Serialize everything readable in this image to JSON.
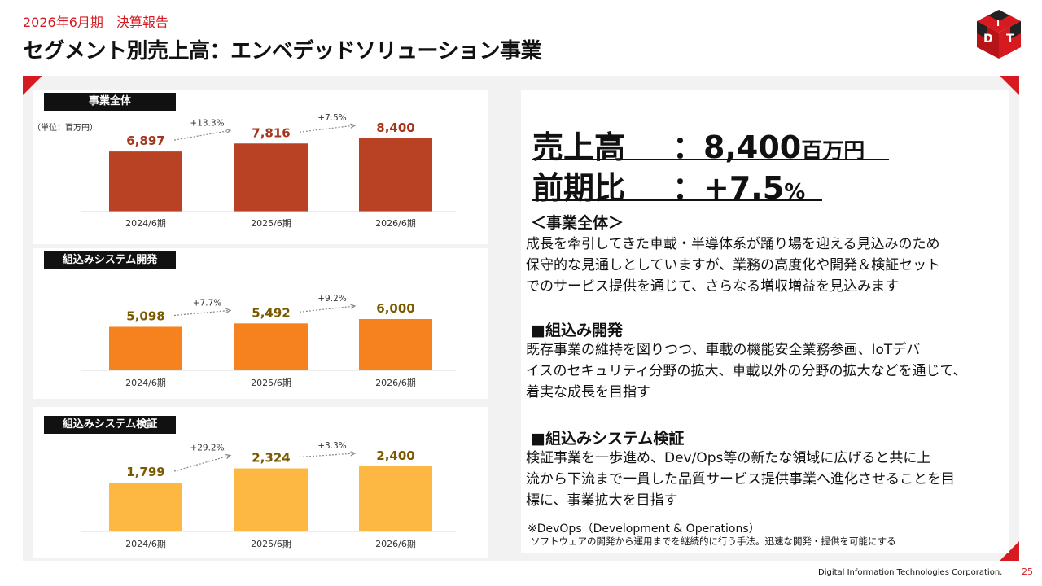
{
  "header": {
    "subtitle": "2026年6月期　決算報告",
    "title": "セグメント別売上高：エンベデッドソリューション事業"
  },
  "logo": {
    "letters": [
      "D",
      "I",
      "T"
    ],
    "colors": {
      "primary": "#d71920",
      "dark": "#222222"
    }
  },
  "charts": [
    {
      "label": "事業全体",
      "unit": "（単位：百万円）",
      "color": "#b84223",
      "values_labels": [
        "6,897",
        "7,816",
        "8,400"
      ],
      "growth": [
        "+13.3%",
        "+7.5%"
      ],
      "categories": [
        "2024/6期",
        "2025/6期",
        "2026/6期"
      ]
    },
    {
      "label": "組込みシステム開発",
      "color": "#f5821f",
      "values_labels": [
        "5,098",
        "5,492",
        "6,000"
      ],
      "growth": [
        "+7.7%",
        "+9.2%"
      ],
      "categories": [
        "2024/6期",
        "2025/6期",
        "2026/6期"
      ]
    },
    {
      "label": "組込みシステム検証",
      "color": "#fdb844",
      "values_labels": [
        "1,799",
        "2,324",
        "2,400"
      ],
      "growth": [
        "+29.2%",
        "+3.3%"
      ],
      "categories": [
        "2024/6期",
        "2025/6期",
        "2026/6期"
      ]
    }
  ],
  "chart_data": [
    {
      "type": "bar",
      "title": "事業全体",
      "categories": [
        "2024/6期",
        "2025/6期",
        "2026/6期"
      ],
      "values": [
        6897,
        7816,
        8400
      ]
    },
    {
      "type": "bar",
      "title": "組込みシステム開発",
      "categories": [
        "2024/6期",
        "2025/6期",
        "2026/6期"
      ],
      "values": [
        5098,
        5492,
        6000
      ]
    },
    {
      "type": "bar",
      "title": "組込みシステム検証",
      "categories": [
        "2024/6期",
        "2025/6期",
        "2026/6期"
      ],
      "values": [
        1799,
        2324,
        2400
      ]
    }
  ],
  "kpi": {
    "sales_label": "売上高",
    "sales_sep": "：",
    "sales_value": "8,400",
    "sales_unit": "百万円",
    "yoy_label": "前期比",
    "yoy_sep": "：",
    "yoy_value": "+7.5",
    "yoy_unit": "%"
  },
  "sections": [
    {
      "heading": "＜事業全体＞",
      "lines": [
        "成長を牽引してきた車載・半導体系が踊り場を迎える見込みのため",
        "保守的な見通しとしていますが、業務の高度化や開発＆検証セット",
        "でのサービス提供を通じて、さらなる増収増益を見込みます"
      ]
    },
    {
      "heading": "■組込み開発",
      "lines": [
        "既存事業の維持を図りつつ、車載の機能安全業務参画、IoTデバ",
        "イスのセキュリティ分野の拡大、車載以外の分野の拡大などを通じて、",
        "着実な成長を目指す"
      ]
    },
    {
      "heading": "■組込みシステム検証",
      "lines": [
        "検証事業を一歩進め、Dev/Ops等の新たな領域に広げると共に上",
        "流から下流まで一貫した品質サービス提供事業へ進化させることを目",
        "標に、事業拡大を目指す"
      ]
    }
  ],
  "notes": {
    "line1": "※DevOps（Development & Operations）",
    "line2": "ソフトウェアの開発から運用までを継続的に行う手法。迅速な開発・提供を可能にする"
  },
  "footer": {
    "company": "Digital Information Technologies Corporation.",
    "page": "25"
  }
}
